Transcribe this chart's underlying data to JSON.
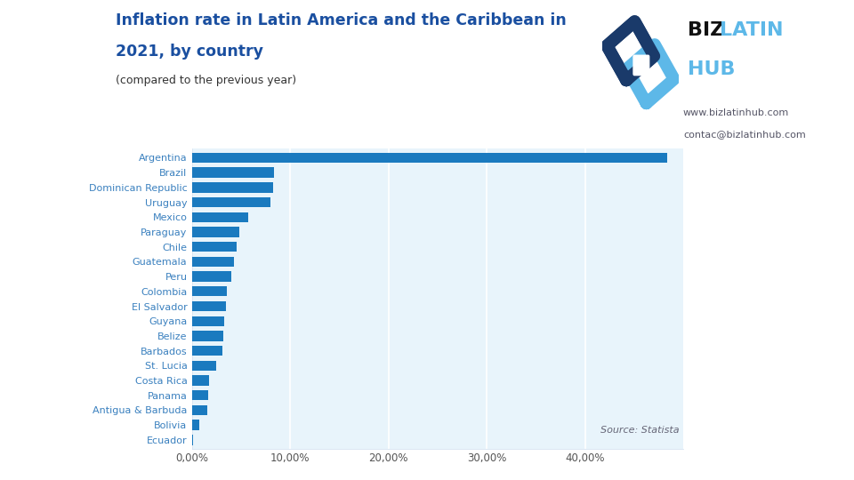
{
  "title_line1": "Inflation rate in Latin America and the Caribbean in",
  "title_line2": "2021, by country",
  "subtitle": "(compared to the previous year)",
  "source": "Source: Statista",
  "website1": "www.bizlatinhub.com",
  "website2": "contac@bizlatinhub.com",
  "bg_color": "#ffffff",
  "plot_bg_color": "#e8f4fb",
  "bar_color": "#1a7abf",
  "title_color": "#1a4fa0",
  "label_color": "#3a80bf",
  "subtitle_color": "#333333",
  "website_color": "#555566",
  "source_color": "#666677",
  "biz_color": "#111111",
  "latin_color": "#5db8e8",
  "hub_color": "#5db8e8",
  "categories": [
    "Argentina",
    "Brazil",
    "Dominican Republic",
    "Uruguay",
    "Mexico",
    "Paraguay",
    "Chile",
    "Guatemala",
    "Peru",
    "Colombia",
    "El Salvador",
    "Guyana",
    "Belize",
    "Barbados",
    "St. Lucia",
    "Costa Rica",
    "Panama",
    "Antigua & Barbuda",
    "Bolivia",
    "Ecuador"
  ],
  "values": [
    48.4,
    8.3,
    8.2,
    7.96,
    5.69,
    4.83,
    4.5,
    4.29,
    4.0,
    3.5,
    3.47,
    3.3,
    3.21,
    3.08,
    2.44,
    1.73,
    1.64,
    1.57,
    0.74,
    0.13
  ],
  "xlim": [
    0,
    50
  ],
  "xticks": [
    0,
    10,
    20,
    30,
    40
  ],
  "xtick_labels": [
    "0,00%",
    "10,00%",
    "20,00%",
    "30,00%",
    "40,00%"
  ]
}
